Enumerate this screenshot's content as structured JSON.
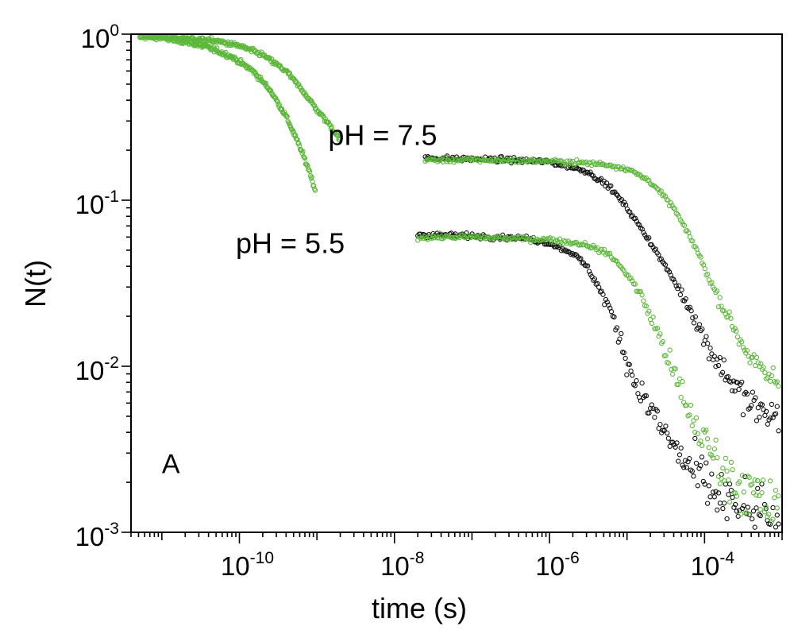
{
  "chart_data": {
    "type": "scatter",
    "title": "",
    "xlabel": "time (s)",
    "ylabel": "N(t)",
    "xscale": "log",
    "yscale": "log",
    "xlim": [
      4e-12,
      0.001
    ],
    "ylim": [
      0.001,
      1
    ],
    "grid": false,
    "legend": "none",
    "x_ticks": [
      {
        "value": 1e-10,
        "base": "10",
        "exp": "-10"
      },
      {
        "value": 1e-08,
        "base": "10",
        "exp": "-8"
      },
      {
        "value": 1e-06,
        "base": "10",
        "exp": "-6"
      },
      {
        "value": 0.0001,
        "base": "10",
        "exp": "-4"
      }
    ],
    "y_ticks": [
      {
        "value": 1,
        "base": "10",
        "exp": "0"
      },
      {
        "value": 0.1,
        "base": "10",
        "exp": "-1"
      },
      {
        "value": 0.01,
        "base": "10",
        "exp": "-2"
      },
      {
        "value": 0.001,
        "base": "10",
        "exp": "-3"
      }
    ],
    "annotations": [
      {
        "text": "pH = 7.5",
        "x": 1.4e-09,
        "y": 0.245
      },
      {
        "text": "pH = 5.5",
        "x": 9e-11,
        "y": 0.055
      }
    ],
    "panel_label": {
      "text": "A",
      "x": 1e-11,
      "y": 0.0026
    },
    "colors": {
      "green": "#5cb83a",
      "black": "#111111"
    },
    "series": [
      {
        "color": "green",
        "marker": "open-circle",
        "x": [
          5e-12,
          1e-11,
          2e-11,
          4e-11,
          8e-11,
          1.5e-10,
          2.5e-10,
          4e-10,
          6e-10,
          8e-10,
          9.5e-10
        ],
        "y": [
          0.97,
          0.95,
          0.9,
          0.83,
          0.73,
          0.6,
          0.46,
          0.32,
          0.21,
          0.15,
          0.115
        ]
      },
      {
        "color": "green",
        "marker": "open-circle",
        "x": [
          5e-12,
          1e-11,
          2e-11,
          5e-11,
          1e-10,
          2e-10,
          4e-10,
          7e-10,
          1e-09,
          1.5e-09,
          2e-09
        ],
        "y": [
          0.98,
          0.97,
          0.95,
          0.91,
          0.85,
          0.75,
          0.6,
          0.44,
          0.35,
          0.28,
          0.23
        ]
      },
      {
        "color": "black",
        "marker": "open-circle",
        "x": [
          2.5e-08,
          1e-07,
          3e-07,
          1e-06,
          3e-06,
          6e-06,
          1e-05,
          2e-05,
          4e-05,
          7e-05,
          0.0001,
          0.00015,
          0.00025,
          0.0004,
          0.0006,
          0.0009
        ],
        "y": [
          0.18,
          0.177,
          0.175,
          0.17,
          0.15,
          0.12,
          0.09,
          0.056,
          0.033,
          0.021,
          0.0145,
          0.0105,
          0.0075,
          0.0058,
          0.0052,
          0.005
        ]
      },
      {
        "color": "green",
        "marker": "open-circle",
        "x": [
          2.5e-08,
          1e-07,
          1e-06,
          5e-06,
          1e-05,
          2e-05,
          4e-05,
          8e-05,
          0.00012,
          0.0002,
          0.0003,
          0.0005,
          0.0007,
          0.0009
        ],
        "y": [
          0.175,
          0.175,
          0.172,
          0.165,
          0.155,
          0.13,
          0.09,
          0.05,
          0.032,
          0.02,
          0.014,
          0.0095,
          0.0085,
          0.008
        ]
      },
      {
        "color": "black",
        "marker": "open-circle",
        "x": [
          2e-08,
          1e-07,
          5e-07,
          1e-06,
          2e-06,
          3e-06,
          4e-06,
          6e-06,
          8e-06,
          1.2e-05,
          2e-05,
          3e-05,
          5e-05,
          8e-05,
          0.00012,
          0.0002,
          0.0003,
          0.0005,
          0.0007,
          0.0009
        ],
        "y": [
          0.062,
          0.061,
          0.059,
          0.055,
          0.048,
          0.04,
          0.032,
          0.022,
          0.015,
          0.0085,
          0.0055,
          0.004,
          0.0028,
          0.0022,
          0.0018,
          0.0015,
          0.0013,
          0.0012,
          0.0011,
          0.001
        ]
      },
      {
        "color": "green",
        "marker": "open-circle",
        "x": [
          2e-08,
          1e-07,
          1e-06,
          3e-06,
          6e-06,
          1e-05,
          1.5e-05,
          2e-05,
          3e-05,
          4e-05,
          6e-05,
          9e-05,
          0.00014,
          0.0002,
          0.0003,
          0.0005,
          0.0007,
          0.0009
        ],
        "y": [
          0.06,
          0.06,
          0.058,
          0.054,
          0.047,
          0.036,
          0.027,
          0.02,
          0.013,
          0.009,
          0.0055,
          0.0038,
          0.0028,
          0.0022,
          0.0019,
          0.0016,
          0.0014,
          0.0013
        ]
      }
    ]
  }
}
